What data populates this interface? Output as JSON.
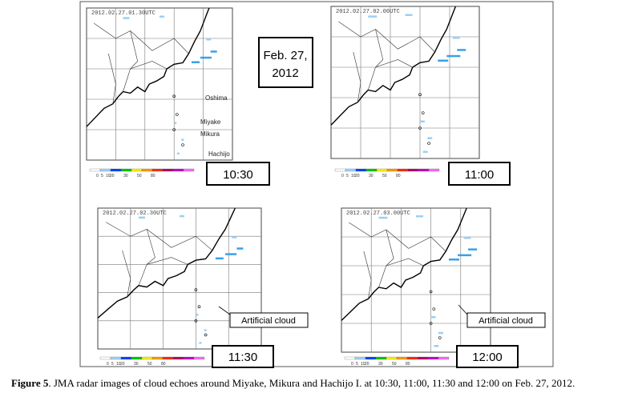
{
  "figure": {
    "panels": [
      {
        "timestamp": "2012.02.27.01.30UTC",
        "time": "10:30"
      },
      {
        "timestamp": "2012.02.27.02.00UTC",
        "time": "11:00"
      },
      {
        "timestamp": "2012.02.27.02.30UTC",
        "time": "11:30"
      },
      {
        "timestamp": "2012.02.27.03.00UTC",
        "time": "12:00"
      }
    ],
    "date_label": [
      "Feb. 27,",
      "2012"
    ],
    "island_labels": [
      "Oshima",
      "Miyake",
      "Mikura",
      "Hachijo"
    ],
    "annotation": "Artificial cloud",
    "colorbar_labels": [
      "0",
      "5",
      "10",
      "20",
      "30",
      "50",
      "80"
    ],
    "caption": {
      "label": "Figure 5",
      "text": ". JMA radar images of cloud echoes around Miyake, Mikura and Hachijo I. at 10:30, 11:00, 11:30 and 12:00 on Feb. 27, 2012."
    }
  }
}
